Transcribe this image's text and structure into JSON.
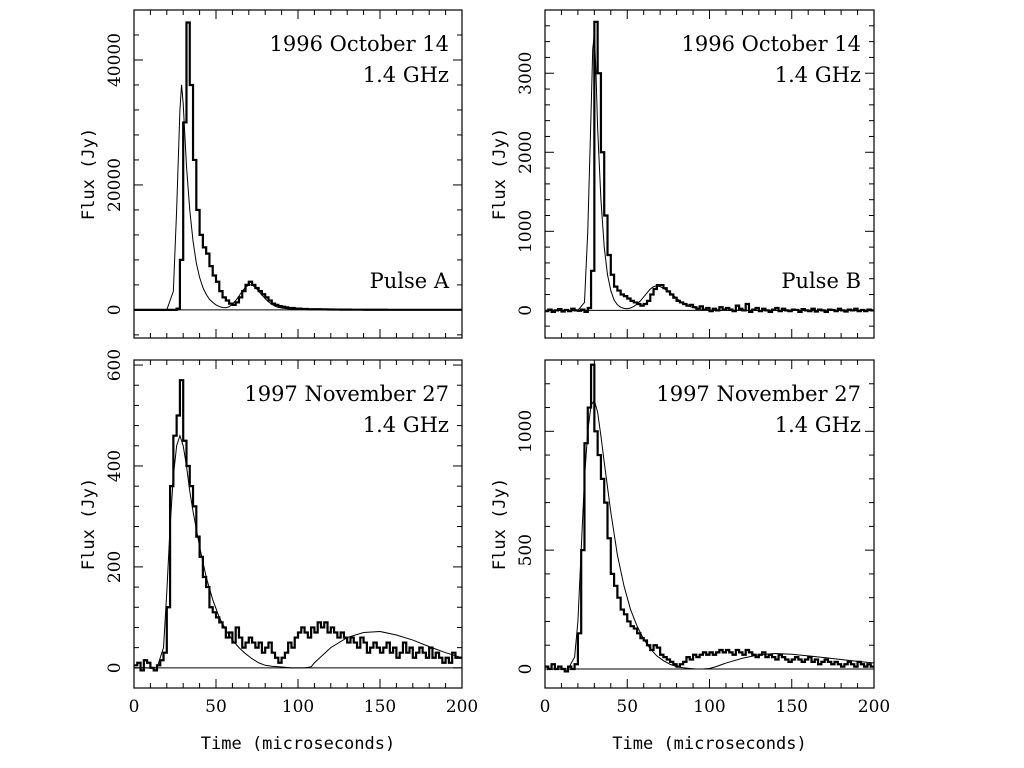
{
  "figure": {
    "xlabel": "Time (microseconds)",
    "ylabel": "Flux (Jy)"
  },
  "chart_data": [
    {
      "type": "line",
      "title": "1996 October 14",
      "subtitle": "1.4 GHz",
      "label": "Pulse A",
      "ylabel": "Flux (Jy)",
      "xlabel": "",
      "xlim": [
        0,
        200
      ],
      "ylim": [
        -4500,
        48000
      ],
      "x_ticks": [
        "0",
        "50",
        "100",
        "150",
        "200"
      ],
      "y_ticks": [
        0,
        20000,
        40000
      ],
      "y_tick_labels": [
        "0",
        "20000",
        "40000"
      ],
      "series": [
        {
          "style": "histogram",
          "step": 2,
          "x0": 0,
          "values": [
            0,
            0,
            0,
            0,
            0,
            0,
            0,
            0,
            0,
            0,
            0,
            0,
            0,
            200,
            8000,
            30000,
            46000,
            36000,
            24000,
            16000,
            12000,
            10000,
            9000,
            7000,
            5500,
            4500,
            3000,
            2000,
            1500,
            1000,
            800,
            1200,
            2000,
            3000,
            4000,
            4500,
            4000,
            3500,
            3000,
            2500,
            2000,
            1500,
            1000,
            800,
            600,
            500,
            400,
            300,
            300,
            200,
            200,
            150,
            150,
            100,
            100,
            100,
            100,
            80,
            80,
            60,
            60,
            50,
            50,
            40,
            40,
            40,
            30,
            30,
            30,
            30,
            20,
            20,
            20,
            20,
            20,
            20,
            20,
            10,
            10,
            10,
            10,
            10,
            10,
            10,
            10,
            10,
            10,
            10,
            10,
            10,
            10,
            10,
            10,
            10,
            10,
            10,
            10,
            10,
            10,
            10
          ]
        },
        {
          "style": "model",
          "x": [
            0,
            20,
            24,
            26,
            28,
            29,
            30,
            31,
            32,
            34,
            36,
            38,
            40,
            42,
            44,
            46,
            48,
            50,
            52,
            54,
            56,
            58,
            60,
            62,
            64,
            66,
            68,
            70,
            72,
            74,
            76,
            78,
            80,
            82,
            84,
            86,
            88,
            90,
            95,
            100,
            110,
            120,
            140,
            160,
            180,
            200
          ],
          "values": [
            0,
            0,
            3000,
            16000,
            32000,
            36000,
            33000,
            28000,
            23000,
            16000,
            11000,
            7500,
            5200,
            3600,
            2500,
            1700,
            1200,
            800,
            550,
            380,
            350,
            500,
            900,
            1500,
            2200,
            3000,
            3600,
            4000,
            4000,
            3600,
            3000,
            2400,
            1800,
            1300,
            900,
            600,
            400,
            300,
            150,
            80,
            30,
            20,
            10,
            5,
            2,
            0
          ]
        }
      ]
    },
    {
      "type": "line",
      "title": "1996 October 14",
      "subtitle": "1.4 GHz",
      "label": "Pulse B",
      "ylabel": "Flux (Jy)",
      "xlabel": "",
      "xlim": [
        0,
        200
      ],
      "ylim": [
        -350,
        3800
      ],
      "x_ticks": [
        "0",
        "50",
        "100",
        "150",
        "200"
      ],
      "y_ticks": [
        0,
        1000,
        2000,
        3000
      ],
      "y_tick_labels": [
        "0",
        "1000",
        "2000",
        "3000"
      ],
      "series": [
        {
          "style": "histogram",
          "step": 2,
          "x0": 0,
          "values": [
            -10,
            10,
            -20,
            0,
            15,
            -15,
            5,
            -10,
            20,
            0,
            -5,
            10,
            -20,
            30,
            500,
            3650,
            3000,
            2000,
            1200,
            700,
            450,
            300,
            250,
            200,
            180,
            150,
            120,
            100,
            80,
            60,
            80,
            120,
            200,
            270,
            320,
            320,
            280,
            240,
            200,
            160,
            120,
            100,
            80,
            60,
            70,
            40,
            20,
            50,
            10,
            30,
            -10,
            20,
            0,
            40,
            10,
            30,
            10,
            -10,
            60,
            20,
            0,
            80,
            -20,
            10,
            30,
            -10,
            20,
            0,
            -20,
            10,
            30,
            -10,
            20,
            0,
            -10,
            10,
            5,
            -20,
            15,
            0,
            -10,
            20,
            -15,
            10,
            0,
            -20,
            10,
            5,
            -10,
            20,
            0,
            -15,
            10,
            0,
            20,
            -10,
            5,
            -10,
            10,
            0
          ]
        },
        {
          "style": "model",
          "x": [
            0,
            20,
            24,
            26,
            28,
            29,
            30,
            31,
            32,
            34,
            36,
            38,
            40,
            42,
            44,
            46,
            48,
            50,
            52,
            54,
            56,
            58,
            60,
            62,
            64,
            66,
            68,
            70,
            72,
            74,
            76,
            78,
            80,
            82,
            84,
            86,
            88,
            90,
            95,
            100,
            110,
            120,
            140,
            160,
            180,
            200
          ],
          "values": [
            0,
            0,
            100,
            1000,
            2500,
            3300,
            3500,
            3000,
            2300,
            1400,
            800,
            450,
            250,
            130,
            70,
            40,
            25,
            20,
            30,
            50,
            80,
            120,
            170,
            220,
            270,
            300,
            310,
            300,
            280,
            250,
            220,
            190,
            150,
            120,
            90,
            70,
            50,
            35,
            15,
            5,
            2,
            0,
            0,
            0,
            0,
            0
          ]
        }
      ]
    },
    {
      "type": "line",
      "title": "1997 November 27",
      "subtitle": "1.4 GHz",
      "label": "",
      "ylabel": "Flux (Jy)",
      "xlabel": "Time (microseconds)",
      "xlim": [
        0,
        200
      ],
      "ylim": [
        -40,
        610
      ],
      "x_ticks": [
        "0",
        "50",
        "100",
        "150",
        "200"
      ],
      "y_ticks": [
        0,
        200,
        400,
        600
      ],
      "y_tick_labels": [
        "0",
        "200",
        "400",
        "600"
      ],
      "series": [
        {
          "style": "histogram",
          "step": 2,
          "x0": 0,
          "values": [
            5,
            10,
            -5,
            15,
            10,
            0,
            -5,
            5,
            15,
            30,
            120,
            360,
            460,
            500,
            570,
            450,
            400,
            360,
            320,
            260,
            220,
            180,
            160,
            120,
            110,
            100,
            90,
            80,
            60,
            70,
            50,
            80,
            60,
            40,
            50,
            60,
            50,
            40,
            50,
            30,
            40,
            50,
            30,
            20,
            10,
            20,
            30,
            50,
            40,
            60,
            70,
            80,
            70,
            60,
            80,
            70,
            90,
            80,
            90,
            70,
            80,
            70,
            60,
            70,
            60,
            50,
            60,
            50,
            40,
            60,
            50,
            30,
            40,
            50,
            40,
            30,
            40,
            50,
            30,
            40,
            20,
            30,
            50,
            30,
            40,
            20,
            30,
            40,
            30,
            20,
            40,
            20,
            30,
            20,
            10,
            20,
            10,
            30,
            20,
            20
          ]
        },
        {
          "style": "model",
          "x": [
            0,
            14,
            18,
            20,
            22,
            24,
            26,
            28,
            30,
            32,
            34,
            36,
            40,
            44,
            48,
            52,
            56,
            60,
            64,
            68,
            72,
            76,
            80,
            84,
            88,
            92,
            96,
            100,
            104,
            108,
            110,
            115,
            120,
            130,
            140,
            150,
            160,
            170,
            180,
            190,
            200
          ],
          "values": [
            0,
            0,
            40,
            150,
            280,
            380,
            440,
            460,
            440,
            400,
            350,
            310,
            240,
            180,
            135,
            100,
            75,
            55,
            40,
            28,
            18,
            10,
            5,
            3,
            2,
            1,
            0,
            0,
            0,
            2,
            10,
            25,
            40,
            60,
            70,
            72,
            65,
            55,
            42,
            30,
            20
          ]
        }
      ]
    },
    {
      "type": "line",
      "title": "1997 November 27",
      "subtitle": "1.4 GHz",
      "label": "",
      "ylabel": "Flux (Jy)",
      "xlabel": "Time (microseconds)",
      "xlim": [
        0,
        200
      ],
      "ylim": [
        -80,
        1300
      ],
      "x_ticks": [
        "0",
        "50",
        "100",
        "150",
        "200"
      ],
      "y_ticks": [
        0,
        500,
        1000
      ],
      "y_tick_labels": [
        "0",
        "500",
        "1000"
      ],
      "series": [
        {
          "style": "histogram",
          "step": 2,
          "x0": 0,
          "values": [
            10,
            0,
            20,
            0,
            10,
            0,
            -10,
            10,
            0,
            20,
            150,
            500,
            950,
            1100,
            1280,
            1000,
            900,
            800,
            700,
            550,
            400,
            350,
            300,
            250,
            230,
            200,
            180,
            170,
            150,
            130,
            120,
            100,
            80,
            100,
            90,
            60,
            50,
            40,
            30,
            20,
            10,
            20,
            30,
            50,
            40,
            60,
            50,
            60,
            70,
            60,
            70,
            60,
            70,
            80,
            70,
            80,
            70,
            60,
            80,
            70,
            60,
            80,
            70,
            60,
            50,
            60,
            70,
            50,
            60,
            50,
            40,
            60,
            50,
            40,
            30,
            40,
            50,
            40,
            30,
            40,
            50,
            30,
            40,
            20,
            30,
            40,
            30,
            20,
            30,
            20,
            10,
            20,
            30,
            20,
            10,
            30,
            20,
            10,
            20,
            10
          ]
        },
        {
          "style": "model",
          "x": [
            0,
            14,
            18,
            20,
            22,
            24,
            26,
            28,
            30,
            32,
            34,
            36,
            40,
            44,
            48,
            52,
            56,
            60,
            64,
            68,
            72,
            76,
            80,
            84,
            88,
            92,
            96,
            100,
            104,
            108,
            110,
            115,
            120,
            130,
            140,
            150,
            160,
            170,
            180,
            190,
            200
          ],
          "values": [
            0,
            0,
            50,
            200,
            500,
            800,
            1000,
            1110,
            1130,
            1080,
            980,
            870,
            660,
            480,
            350,
            250,
            180,
            125,
            85,
            55,
            35,
            20,
            10,
            5,
            2,
            0,
            0,
            2,
            10,
            20,
            25,
            35,
            45,
            60,
            65,
            62,
            55,
            48,
            40,
            32,
            25
          ]
        }
      ]
    }
  ]
}
